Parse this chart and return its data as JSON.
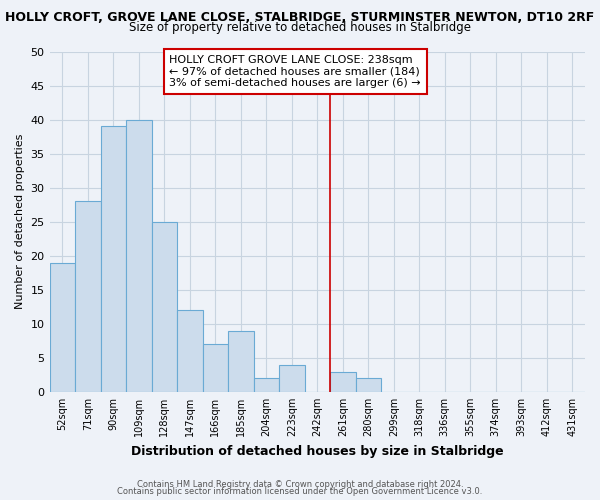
{
  "title_line1": "HOLLY CROFT, GROVE LANE CLOSE, STALBRIDGE, STURMINSTER NEWTON, DT10 2RF",
  "title_line2": "Size of property relative to detached houses in Stalbridge",
  "xlabel": "Distribution of detached houses by size in Stalbridge",
  "ylabel": "Number of detached properties",
  "footer_line1": "Contains HM Land Registry data © Crown copyright and database right 2024.",
  "footer_line2": "Contains public sector information licensed under the Open Government Licence v3.0.",
  "bin_labels": [
    "52sqm",
    "71sqm",
    "90sqm",
    "109sqm",
    "128sqm",
    "147sqm",
    "166sqm",
    "185sqm",
    "204sqm",
    "223sqm",
    "242sqm",
    "261sqm",
    "280sqm",
    "299sqm",
    "318sqm",
    "336sqm",
    "355sqm",
    "374sqm",
    "393sqm",
    "412sqm",
    "431sqm"
  ],
  "bar_values": [
    19,
    28,
    39,
    40,
    25,
    12,
    7,
    9,
    2,
    4,
    0,
    3,
    2,
    0,
    0,
    0,
    0,
    0,
    0,
    0,
    0
  ],
  "bar_color": "#ccdcec",
  "bar_edge_color": "#6aaad4",
  "grid_color": "#c8d4e0",
  "bg_color": "#eef2f8",
  "vline_color": "#cc0000",
  "annotation_line1": "HOLLY CROFT GROVE LANE CLOSE: 238sqm",
  "annotation_line2": "← 97% of detached houses are smaller (184)",
  "annotation_line3": "3% of semi-detached houses are larger (6) →",
  "ylim": [
    0,
    50
  ],
  "yticks": [
    0,
    5,
    10,
    15,
    20,
    25,
    30,
    35,
    40,
    45,
    50
  ],
  "vline_pos": 10.5
}
